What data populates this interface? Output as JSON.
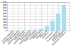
{
  "chart_data": {
    "type": "bar",
    "categories": [
      "Carbon/epoxy\nprepreg (oven)",
      "Carbon/epoxy\nprepreg (press)",
      "Glass/epoxy\nprepreg (oven)",
      "Glass/epoxy\nprepreg (press)",
      "Resin transfer\nmoulding",
      "Resin film\ninfusion",
      "Filament\nwinding",
      "Pultrusion",
      "Thermoplastic\nstamping",
      "Thermoplastic\nfilament winding"
    ],
    "values": [
      5,
      8,
      12,
      18,
      30,
      50,
      150,
      350,
      600,
      900
    ],
    "color": "#aaddee",
    "ylim": [
      0,
      1000
    ],
    "yticks": [
      0,
      100,
      200,
      300,
      400,
      500,
      600,
      700,
      800,
      900,
      {
        "value": 1000,
        "label": "1,000"
      }
    ],
    "grid": true
  }
}
